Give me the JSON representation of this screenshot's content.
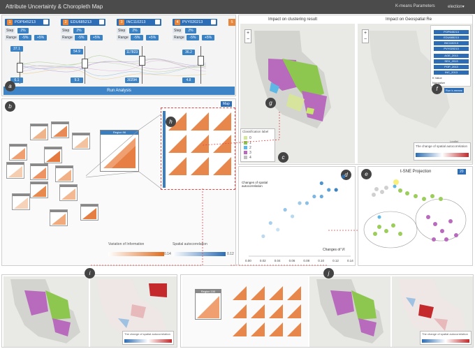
{
  "app": {
    "title": "Attribute Uncertainty & Choropleth Map",
    "kmeans_menu": "K-means Parameters",
    "election_menu": "election"
  },
  "attributes": [
    {
      "num": "1",
      "name": "POP645213",
      "step": "2%",
      "range_low": "-5%",
      "range_high": "+5%",
      "max": "37.1",
      "min": "6.1"
    },
    {
      "num": "2",
      "name": "EDU685213",
      "step": "2%",
      "range_low": "-5%",
      "range_high": "+5%",
      "max": "54.9",
      "min": "9.3"
    },
    {
      "num": "3",
      "name": "INC110213",
      "step": "2%",
      "range_low": "-5%",
      "range_high": "+5%",
      "max": "117823",
      "min": "30294"
    },
    {
      "num": "4",
      "name": "PVY020213",
      "step": "2%",
      "range_low": "-5%",
      "range_high": "+5%",
      "max": "36.2",
      "min": "4.8"
    },
    {
      "num": "5"
    }
  ],
  "labels": {
    "step": "Step",
    "range": "Range"
  },
  "run_button": "Run Analysis",
  "badges": {
    "a": "a",
    "b": "b",
    "c": "c",
    "d": "d",
    "e": "e",
    "f": "f",
    "g": "g",
    "h": "h",
    "i": "i",
    "j": "j"
  },
  "panel_c": {
    "title_left": "Impact on clustering result",
    "title_right": "Impact on Geospatial Re",
    "legend_title": "Classification label",
    "legend_items": [
      "0",
      "1",
      "2",
      "3",
      "4"
    ],
    "spatial_title": "The change of spatial autocorrelation",
    "attribution": "Leaflet"
  },
  "kmeans_list": [
    "POP645213",
    "EDU685213",
    "INC110213",
    "PVY020213",
    "AGE_2013",
    "SEX_2013",
    "POP_2013",
    "INC_2013"
  ],
  "kmeans_fields": {
    "k_value": "K Value",
    "normalize": "Normalize",
    "run_button": "Run k-means"
  },
  "panel_b": {
    "map_button": "Map",
    "region_label": "Region 96",
    "legend_vi": "Variation of Information",
    "legend_sa": "Spatial autocorrelation",
    "vi_max": "0.14",
    "sa_max": "0.12"
  },
  "scatter": {
    "ylabel": "Changes of spatial autocorrelation",
    "xlabel": "Changes of VI",
    "xticks": [
      "0.00",
      "0.02",
      "0.04",
      "0.06",
      "0.08",
      "0.10",
      "0.12",
      "0.14"
    ]
  },
  "tsne": {
    "title": "t-SNE Projection",
    "count": "20"
  },
  "bottom": {
    "region_label": "Region 100",
    "spatial_title": "The change of spatial autocorrelation"
  },
  "chart_data": {
    "type": "scatter",
    "title": "",
    "xlabel": "Changes of VI",
    "ylabel": "Changes of spatial autocorrelation",
    "xlim": [
      0.0,
      0.14
    ],
    "ylim": [
      0.0,
      0.12
    ],
    "x": [
      0.02,
      0.03,
      0.05,
      0.08,
      0.09,
      0.1,
      0.11,
      0.12,
      0.06,
      0.07,
      0.04,
      0.1,
      0.13
    ],
    "y": [
      0.03,
      0.05,
      0.07,
      0.08,
      0.09,
      0.09,
      0.1,
      0.1,
      0.06,
      0.08,
      0.04,
      0.11,
      0.12
    ],
    "colors": [
      "#bcd9ef",
      "#a9cfee",
      "#98c6ea",
      "#8bbfe6",
      "#7cb6e3",
      "#6aaadb",
      "#5a9fd5",
      "#3f82c0",
      "#b7d8ef",
      "#9ecae8",
      "#c7e0f2",
      "#4d93cc",
      "#2c6fae"
    ]
  }
}
